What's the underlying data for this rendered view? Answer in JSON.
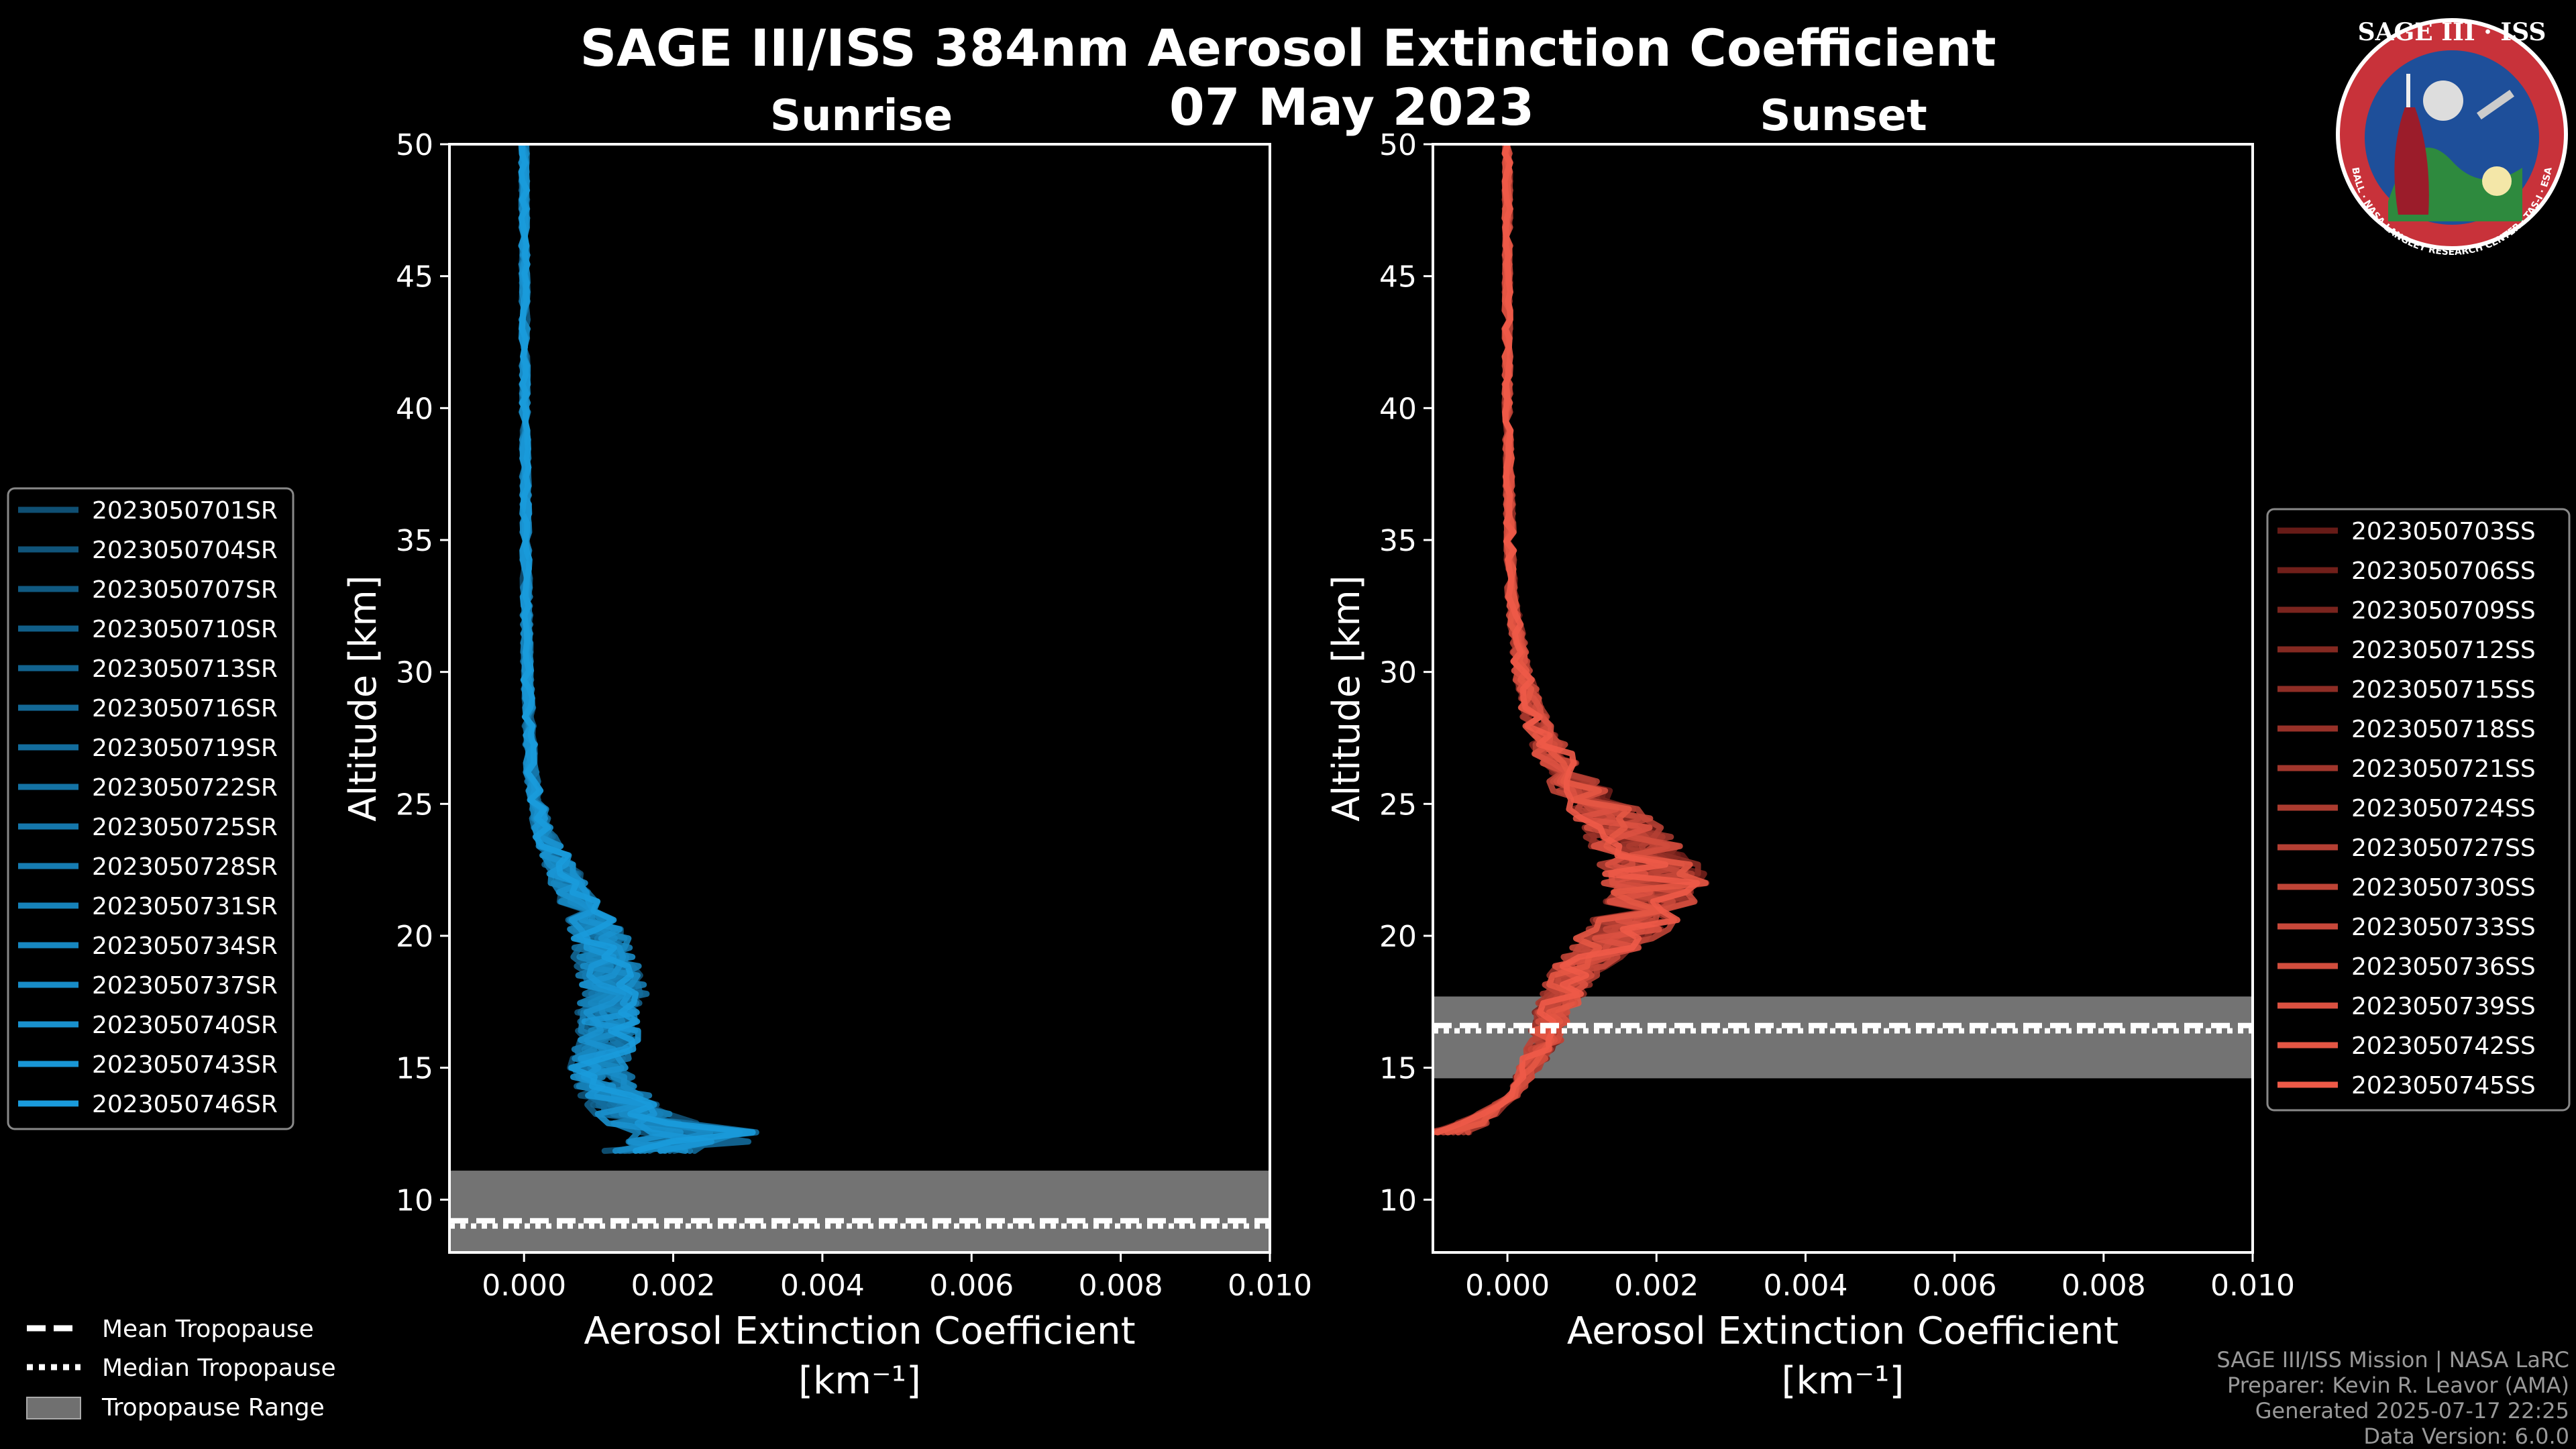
{
  "title_line1": "SAGE III/ISS 384nm Aerosol Extinction Coefficient",
  "title_line2": "07 May 2023",
  "logo": {
    "top": "SAGE III · ISS",
    "ring": "BALL · NASA LANGLEY RESEARCH CENTER · TAS-I · ESA"
  },
  "footer": [
    "SAGE III/ISS Mission | NASA LaRC",
    "Preparer: Kevin R. Leavor (AMA)",
    "Generated 2025-07-17 22:25",
    "Data Version: 6.0.0"
  ],
  "bottom_legend": [
    {
      "label": "Mean Tropopause",
      "style": "dashed"
    },
    {
      "label": "Median Tropopause",
      "style": "dotted"
    },
    {
      "label": "Tropopause Range",
      "style": "patch"
    }
  ],
  "chart_data": [
    {
      "type": "line",
      "title": "Sunrise",
      "xlabel": "Aerosol Extinction Coefficient",
      "xunit": "[km⁻¹]",
      "ylabel": "Altitude [km]",
      "xlim": [
        -0.001,
        0.01
      ],
      "ylim": [
        8,
        50
      ],
      "xticks": [
        0.0,
        0.002,
        0.004,
        0.006,
        0.008,
        0.01
      ],
      "xtick_labels": [
        "0.000",
        "0.002",
        "0.004",
        "0.006",
        "0.008",
        "0.010"
      ],
      "yticks": [
        10,
        15,
        20,
        25,
        30,
        35,
        40,
        45,
        50
      ],
      "tropopause_range": [
        8,
        11.1
      ],
      "tropopause_mean": 9.2,
      "tropopause_median": 9.0,
      "base_color": "#1a9bdc",
      "dark_color": "#0b3550",
      "reference_profile": {
        "altitude": [
          50,
          40,
          30,
          26,
          24,
          22,
          20,
          18,
          16,
          15,
          14,
          13,
          12.5,
          12,
          11.6
        ],
        "extinction": [
          0.0,
          1e-05,
          4e-05,
          0.0001,
          0.00025,
          0.0006,
          0.001,
          0.0012,
          0.0011,
          0.001,
          0.0012,
          0.0015,
          0.0025,
          0.002,
          0.0012
        ]
      },
      "series": [
        {
          "name": "2023050701SR"
        },
        {
          "name": "2023050704SR"
        },
        {
          "name": "2023050707SR"
        },
        {
          "name": "2023050710SR"
        },
        {
          "name": "2023050713SR"
        },
        {
          "name": "2023050716SR"
        },
        {
          "name": "2023050719SR"
        },
        {
          "name": "2023050722SR"
        },
        {
          "name": "2023050725SR"
        },
        {
          "name": "2023050728SR"
        },
        {
          "name": "2023050731SR"
        },
        {
          "name": "2023050734SR"
        },
        {
          "name": "2023050737SR"
        },
        {
          "name": "2023050740SR"
        },
        {
          "name": "2023050743SR"
        },
        {
          "name": "2023050746SR"
        }
      ]
    },
    {
      "type": "line",
      "title": "Sunset",
      "xlabel": "Aerosol Extinction Coefficient",
      "xunit": "[km⁻¹]",
      "ylabel": "Altitude [km]",
      "xlim": [
        -0.001,
        0.01
      ],
      "ylim": [
        8,
        50
      ],
      "xticks": [
        0.0,
        0.002,
        0.004,
        0.006,
        0.008,
        0.01
      ],
      "xtick_labels": [
        "0.000",
        "0.002",
        "0.004",
        "0.006",
        "0.008",
        "0.010"
      ],
      "yticks": [
        10,
        15,
        20,
        25,
        30,
        35,
        40,
        45,
        50
      ],
      "tropopause_range": [
        14.6,
        17.7
      ],
      "tropopause_mean": 16.6,
      "tropopause_median": 16.4,
      "base_color": "#ee5a48",
      "dark_color": "#3a0606",
      "reference_profile": {
        "altitude": [
          50,
          40,
          33,
          30,
          28,
          26,
          24,
          23,
          22,
          21,
          20,
          19,
          18,
          17,
          16,
          15,
          14,
          13,
          12.5
        ],
        "extinction": [
          0.0,
          0.0,
          5e-05,
          0.0002,
          0.0004,
          0.0008,
          0.0016,
          0.0019,
          0.002,
          0.0019,
          0.0015,
          0.001,
          0.0008,
          0.0006,
          0.0005,
          0.0003,
          0.0001,
          -0.0004,
          -0.0008
        ]
      },
      "series": [
        {
          "name": "2023050703SS"
        },
        {
          "name": "2023050706SS"
        },
        {
          "name": "2023050709SS"
        },
        {
          "name": "2023050712SS"
        },
        {
          "name": "2023050715SS"
        },
        {
          "name": "2023050718SS"
        },
        {
          "name": "2023050721SS"
        },
        {
          "name": "2023050724SS"
        },
        {
          "name": "2023050727SS"
        },
        {
          "name": "2023050730SS"
        },
        {
          "name": "2023050733SS"
        },
        {
          "name": "2023050736SS"
        },
        {
          "name": "2023050739SS"
        },
        {
          "name": "2023050742SS"
        },
        {
          "name": "2023050745SS"
        }
      ]
    }
  ]
}
